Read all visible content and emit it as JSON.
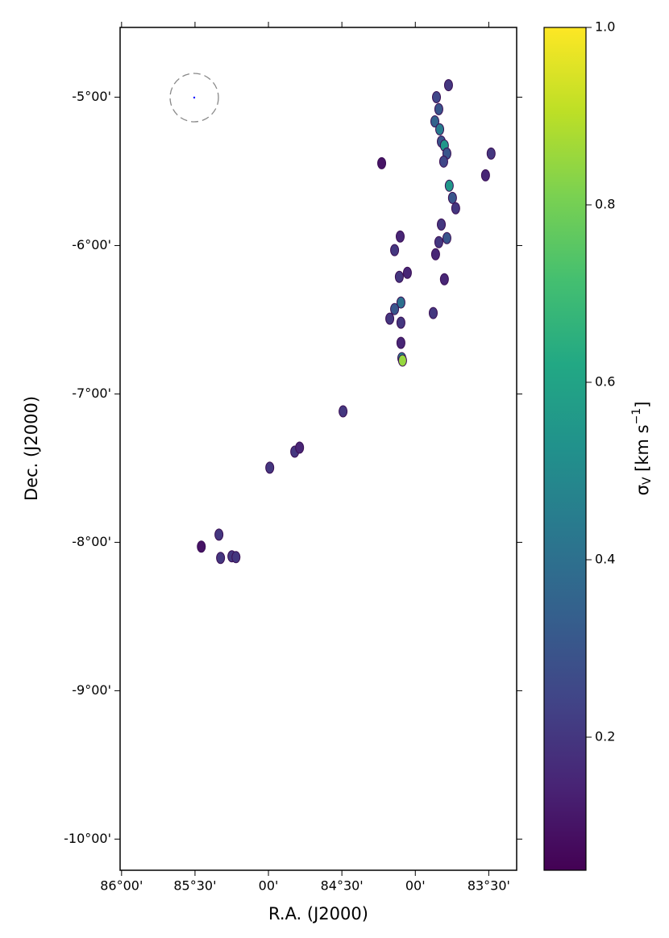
{
  "chart_data": {
    "type": "scatter",
    "xlabel": "R.A. (J2000)",
    "ylabel": "Dec. (J2000)",
    "colorbar_label": [
      "σ",
      "V",
      " [km s",
      "−1",
      "]"
    ],
    "xlim": [
      86.01,
      83.31
    ],
    "xticks": [
      {
        "value": 86.0,
        "label": "86°00'"
      },
      {
        "value": 85.5,
        "label": "85°30'"
      },
      {
        "value": 85.0,
        "label": "00'"
      },
      {
        "value": 84.5,
        "label": "84°30'"
      },
      {
        "value": 84.0,
        "label": "00'"
      },
      {
        "value": 83.5,
        "label": "83°30'"
      }
    ],
    "ylim": [
      -10.21,
      -4.53
    ],
    "yticks": [
      {
        "value": -5,
        "label": "-5°00'"
      },
      {
        "value": -6,
        "label": "-6°00'"
      },
      {
        "value": -7,
        "label": "-7°00'"
      },
      {
        "value": -8,
        "label": "-8°00'"
      },
      {
        "value": -9,
        "label": "-9°00'"
      },
      {
        "value": -10,
        "label": "-10°00'"
      }
    ],
    "clim": [
      0.05,
      1.0
    ],
    "cticks": [
      0.2,
      0.4,
      0.6,
      0.8,
      {
        "value": 1,
        "label": "1.0"
      }
    ],
    "colormap": "viridis",
    "x": [
      83.856,
      83.84,
      83.867,
      83.834,
      83.823,
      83.802,
      83.785,
      83.807,
      83.774,
      83.769,
      83.747,
      83.725,
      83.823,
      83.785,
      83.84,
      84.141,
      84.103,
      83.484,
      83.522,
      84.229,
      84.098,
      84.141,
      84.174,
      84.098,
      83.878,
      84.092,
      84.087,
      84.109,
      84.054,
      84.098,
      84.492,
      84.991,
      84.821,
      84.788,
      85.337,
      85.249,
      85.221,
      85.326,
      85.457,
      83.802,
      83.862
    ],
    "y": [
      -5.0,
      -5.081,
      -5.163,
      -5.217,
      -5.299,
      -5.326,
      -5.38,
      -5.434,
      -4.919,
      -5.597,
      -5.679,
      -5.749,
      -5.858,
      -5.95,
      -5.977,
      -6.031,
      -5.939,
      -5.38,
      -5.527,
      -5.445,
      -6.384,
      -6.428,
      -6.493,
      -6.52,
      -6.455,
      -6.759,
      -6.775,
      -6.211,
      -6.184,
      -6.656,
      -7.117,
      -7.497,
      -7.389,
      -7.362,
      -7.948,
      -8.094,
      -8.1,
      -8.105,
      -8.029,
      -6.227,
      -6.059
    ],
    "values": [
      0.25,
      0.3,
      0.35,
      0.45,
      0.3,
      0.55,
      0.3,
      0.25,
      0.2,
      0.55,
      0.3,
      0.2,
      0.2,
      0.3,
      0.2,
      0.2,
      0.15,
      0.2,
      0.15,
      0.1,
      0.4,
      0.3,
      0.2,
      0.2,
      0.2,
      0.5,
      0.85,
      0.2,
      0.15,
      0.15,
      0.2,
      0.2,
      0.2,
      0.15,
      0.2,
      0.2,
      0.2,
      0.2,
      0.1,
      0.15,
      0.15
    ]
  }
}
